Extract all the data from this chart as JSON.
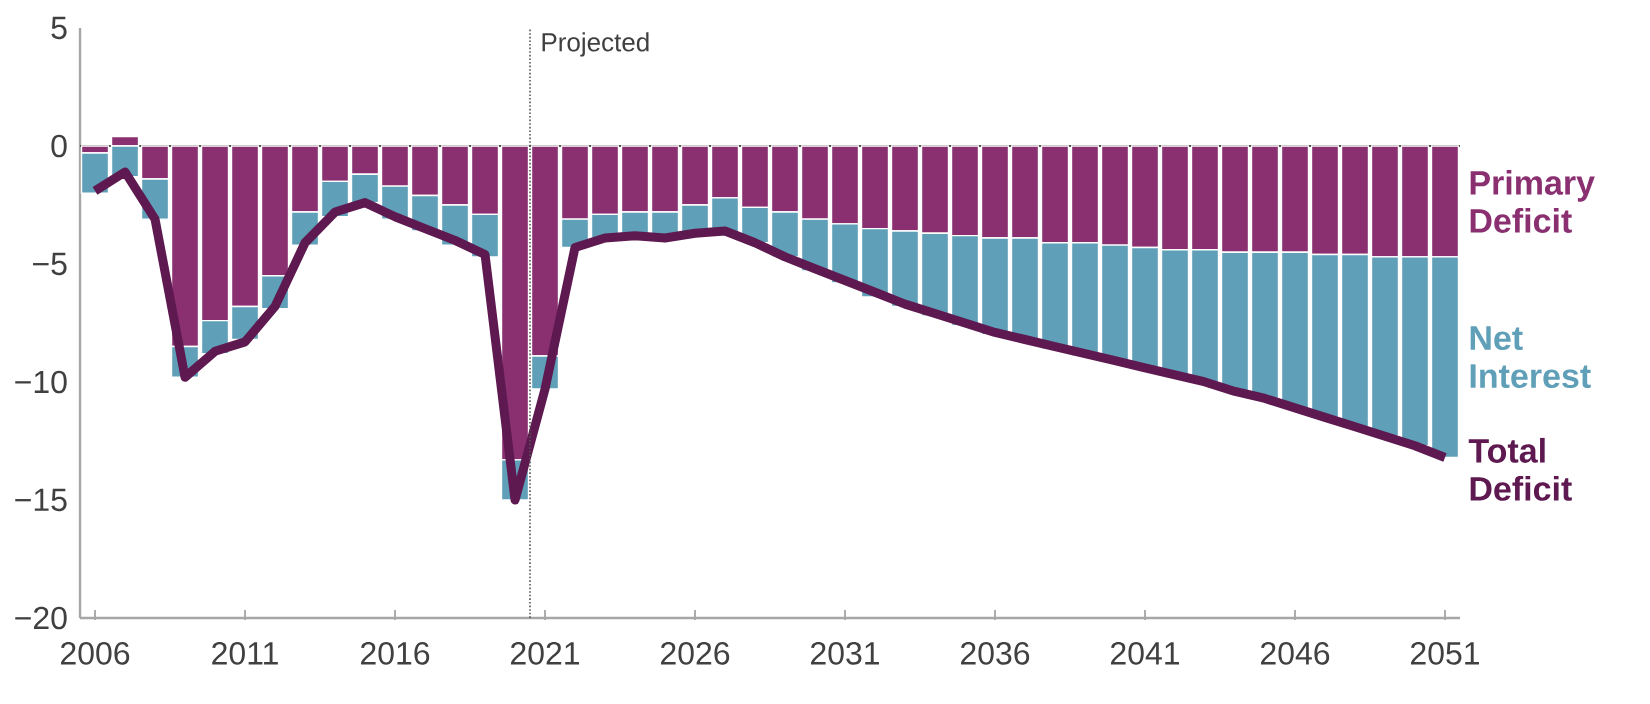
{
  "chart_data": {
    "type": "bar",
    "stacked": true,
    "x": [
      2006,
      2007,
      2008,
      2009,
      2010,
      2011,
      2012,
      2013,
      2014,
      2015,
      2016,
      2017,
      2018,
      2019,
      2020,
      2021,
      2022,
      2023,
      2024,
      2025,
      2026,
      2027,
      2028,
      2029,
      2030,
      2031,
      2032,
      2033,
      2034,
      2035,
      2036,
      2037,
      2038,
      2039,
      2040,
      2041,
      2042,
      2043,
      2044,
      2045,
      2046,
      2047,
      2048,
      2049,
      2050,
      2051
    ],
    "series": [
      {
        "name": "Primary Deficit",
        "color": "#8a3070",
        "values": [
          -0.3,
          0.4,
          -1.4,
          -8.5,
          -7.4,
          -6.8,
          -5.5,
          -2.8,
          -1.5,
          -1.2,
          -1.7,
          -2.1,
          -2.5,
          -2.9,
          -13.3,
          -8.9,
          -3.1,
          -2.9,
          -2.8,
          -2.8,
          -2.5,
          -2.2,
          -2.6,
          -2.8,
          -3.1,
          -3.3,
          -3.5,
          -3.6,
          -3.7,
          -3.8,
          -3.9,
          -3.9,
          -4.1,
          -4.1,
          -4.2,
          -4.3,
          -4.4,
          -4.4,
          -4.5,
          -4.5,
          -4.5,
          -4.6,
          -4.6,
          -4.7,
          -4.7,
          -4.7
        ]
      },
      {
        "name": "Net Interest",
        "color": "#5f9fb8",
        "values": [
          -1.7,
          -1.3,
          -1.7,
          -1.3,
          -1.4,
          -1.4,
          -1.4,
          -1.4,
          -1.5,
          -1.2,
          -1.4,
          -1.5,
          -1.7,
          -1.8,
          -1.7,
          -1.4,
          -1.2,
          -1.0,
          -1.0,
          -1.2,
          -1.3,
          -1.5,
          -1.5,
          -1.9,
          -2.2,
          -2.5,
          -2.9,
          -3.2,
          -3.5,
          -3.8,
          -4.1,
          -4.3,
          -4.5,
          -4.8,
          -4.9,
          -5.1,
          -5.3,
          -5.6,
          -5.9,
          -6.2,
          -6.6,
          -6.9,
          -7.3,
          -7.6,
          -8.0,
          -8.5
        ]
      },
      {
        "name": "Total Deficit",
        "type": "line",
        "color": "#5e1a50",
        "values": [
          -1.9,
          -1.1,
          -3.1,
          -9.8,
          -8.7,
          -8.3,
          -6.8,
          -4.1,
          -2.8,
          -2.4,
          -3.0,
          -3.5,
          -4.0,
          -4.6,
          -15.0,
          -10.3,
          -4.3,
          -3.9,
          -3.8,
          -3.9,
          -3.7,
          -3.6,
          -4.1,
          -4.7,
          -5.2,
          -5.7,
          -6.2,
          -6.7,
          -7.1,
          -7.5,
          -7.9,
          -8.2,
          -8.5,
          -8.8,
          -9.1,
          -9.4,
          -9.7,
          -10.0,
          -10.4,
          -10.7,
          -11.1,
          -11.5,
          -11.9,
          -12.3,
          -12.7,
          -13.2
        ]
      }
    ],
    "xlim": [
      2005.5,
      2051.5
    ],
    "xticks": [
      2006,
      2011,
      2016,
      2021,
      2026,
      2031,
      2036,
      2041,
      2046,
      2051
    ],
    "ylim": [
      -20,
      5
    ],
    "yticks": [
      {
        "value": -20,
        "label": "−20"
      },
      {
        "value": -15,
        "label": "−15"
      },
      {
        "value": -10,
        "label": "−10"
      },
      {
        "value": -5,
        "label": "−5"
      },
      0,
      5
    ],
    "ref_lines": [
      {
        "axis": "x",
        "value": 2020.5,
        "label": "Projected",
        "line_style": "dotted",
        "color": "#555555"
      }
    ]
  }
}
